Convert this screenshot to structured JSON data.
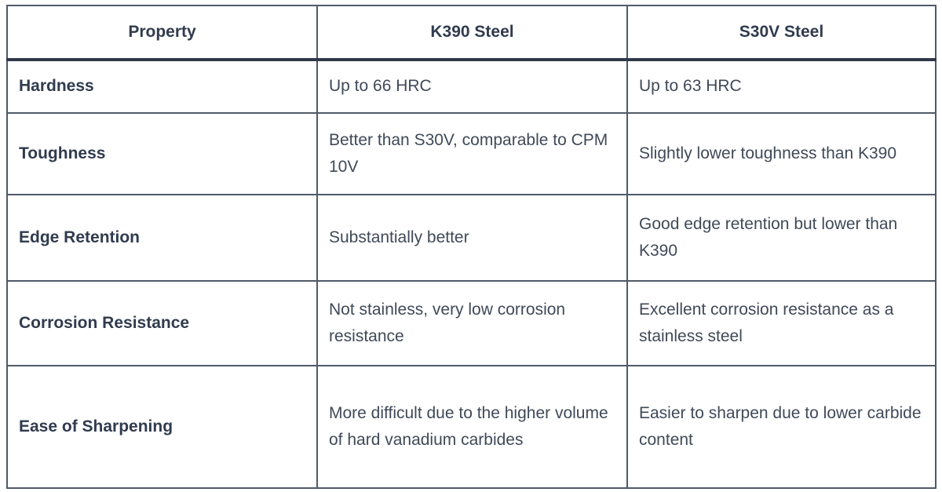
{
  "table": {
    "columns": [
      {
        "label": "Property"
      },
      {
        "label": "K390 Steel"
      },
      {
        "label": "S30V Steel"
      }
    ],
    "rows": [
      {
        "property": "Hardness",
        "k390": "Up to 66 HRC",
        "s30v": "Up to 63 HRC"
      },
      {
        "property": "Toughness",
        "k390": "Better than S30V, comparable to CPM 10V",
        "s30v": "Slightly lower toughness than K390"
      },
      {
        "property": "Edge Retention",
        "k390": "Substantially better",
        "s30v": "Good edge retention but lower than K390"
      },
      {
        "property": "Corrosion Resistance",
        "k390": "Not stainless, very low corrosion resistance",
        "s30v": "Excellent corrosion resistance as a stainless steel"
      },
      {
        "property": "Ease of Sharpening",
        "k390": "More difficult due to the higher volume of hard vanadium carbides",
        "s30v": "Easier to sharpen due to lower carbide content"
      }
    ],
    "colors": {
      "grid_border": "#505a69",
      "header_rule": "#2e3949",
      "heading_text": "#303b4e",
      "body_text": "#404958",
      "background": "#ffffff"
    }
  }
}
